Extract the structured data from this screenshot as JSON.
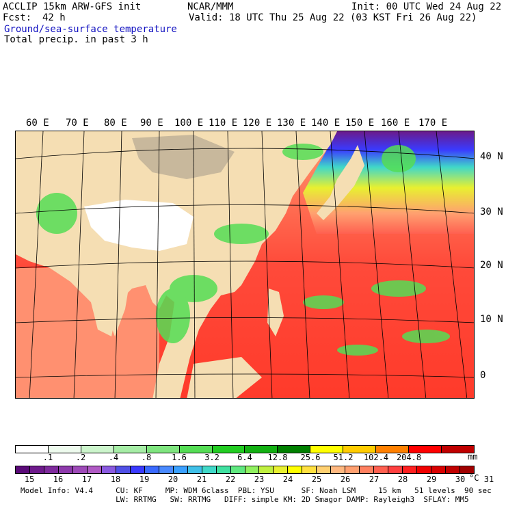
{
  "header": {
    "model": "ACCLIP 15km ARW-GFS init",
    "org": "NCAR/MMM",
    "init": "Init: 00 UTC Wed 24 Aug 22",
    "fcst_label": "Fcst:",
    "fcst_value": "42 h",
    "valid": "Valid: 18 UTC Thu 25 Aug 22 (03 KST Fri 26 Aug 22)",
    "field1": "Ground/sea-surface temperature",
    "field2": "Total precip. in past 3 h"
  },
  "map": {
    "lon_labels": [
      "60 E",
      "70 E",
      "80 E",
      "90 E",
      "100 E",
      "110 E",
      "120 E",
      "130 E",
      "140 E",
      "150 E",
      "160 E",
      "170 E"
    ],
    "lat_labels": [
      "40 N",
      "30 N",
      "20 N",
      "10 N",
      "0"
    ]
  },
  "precip_scale": {
    "labels": [
      ".1",
      ".2",
      ".4",
      ".8",
      "1.6",
      "3.2",
      "6.4",
      "12.8",
      "25.6",
      "51.2",
      "102.4",
      "204.8"
    ],
    "unit": "mm",
    "colors": [
      "#ffffff",
      "#eefbee",
      "#ccf5cc",
      "#a6eda6",
      "#7fe57f",
      "#55dd55",
      "#22cc22",
      "#12b012",
      "#008000",
      "#ffff00",
      "#ffcc00",
      "#ff8000",
      "#ff0000",
      "#c00000"
    ]
  },
  "temp_scale": {
    "labels": [
      "15",
      "16",
      "17",
      "18",
      "19",
      "20",
      "21",
      "22",
      "23",
      "24",
      "25",
      "26",
      "27",
      "28",
      "29",
      "30",
      "31"
    ],
    "unit": "°C",
    "colors": [
      "#5a0a78",
      "#6e1a8c",
      "#7e2a9c",
      "#8e3aac",
      "#9e4ab8",
      "#b05ac4",
      "#8a5ae0",
      "#5050e6",
      "#3a3aff",
      "#3a6aff",
      "#4a8aff",
      "#3aa0ff",
      "#40c0e8",
      "#40d8c8",
      "#40e0a0",
      "#60e880",
      "#90f060",
      "#c0f040",
      "#e8f030",
      "#ffff00",
      "#ffe040",
      "#ffd070",
      "#ffb880",
      "#ffa070",
      "#ff8060",
      "#ff6050",
      "#ff4040",
      "#ff2020",
      "#f00000",
      "#d80000",
      "#c00000",
      "#a00000"
    ]
  },
  "footer": {
    "line1": "Model Info: V4.4     CU: KF     MP: WDM 6class  PBL: YSU      SF: Noah LSM     15 km   51 levels  90 sec",
    "line2": "                     LW: RRTMG   SW: RRTMG   DIFF: simple KM: 2D Smagor DAMP: Rayleigh3  SFLAY: MM5"
  }
}
